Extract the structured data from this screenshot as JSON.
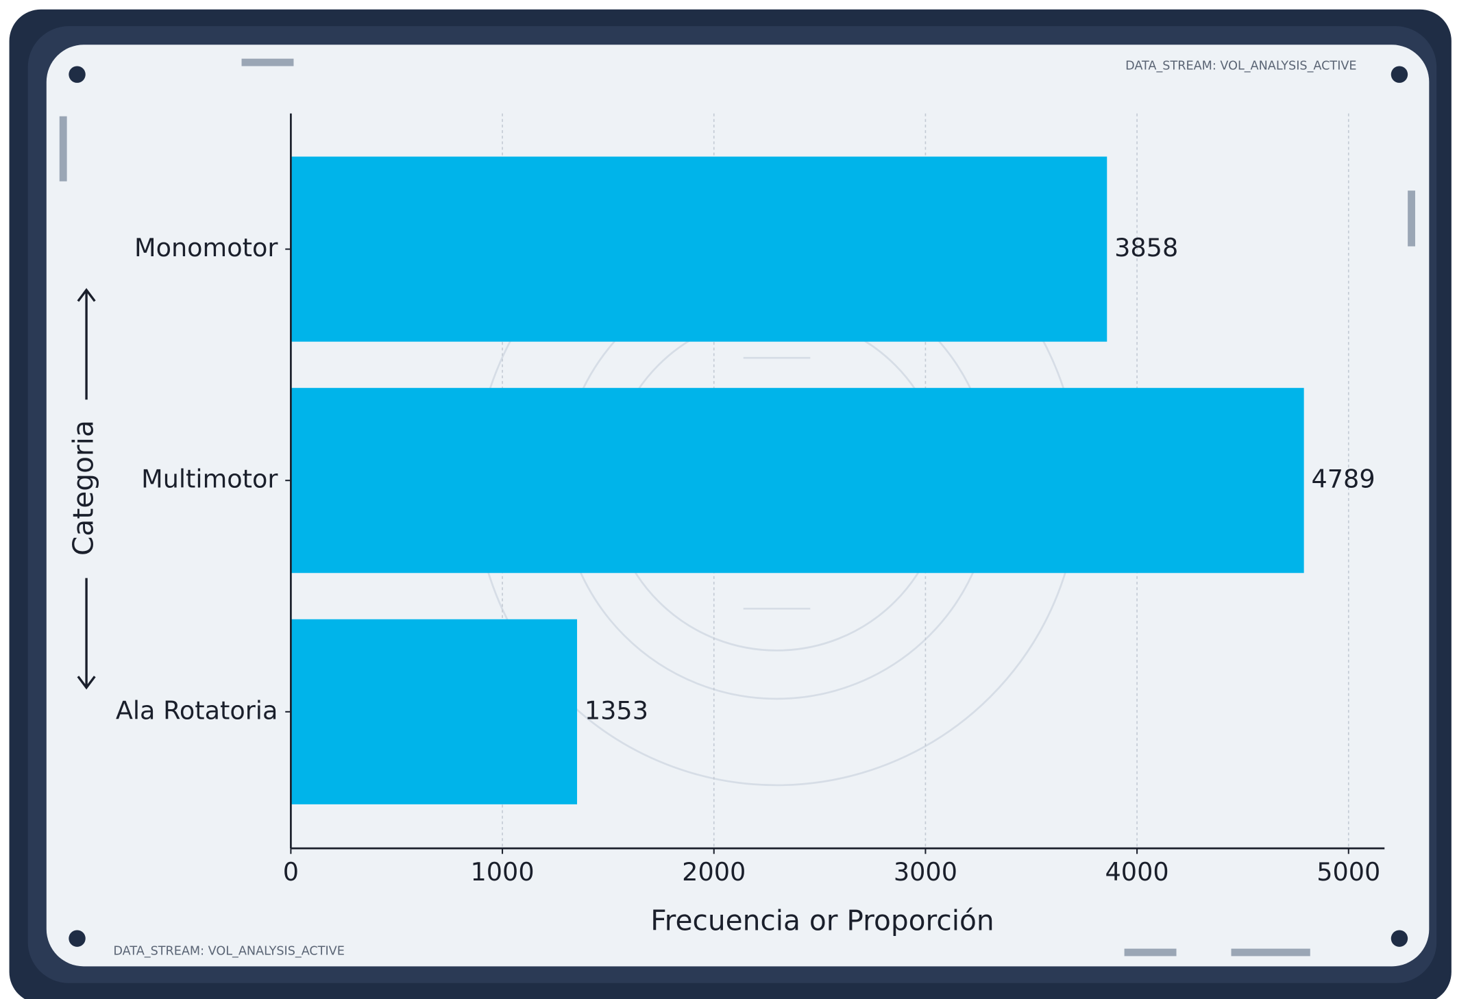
{
  "chart_data": {
    "type": "barh",
    "x_label": "Frecuencia or Proporción",
    "y_label": "Categoria",
    "categories": [
      "Monomotor",
      "Multimotor",
      "Ala Rotatoria"
    ],
    "values": [
      3858,
      4789,
      1353
    ],
    "color": "#00b4ea",
    "xlim": [
      0,
      5170
    ],
    "xticks": [
      0,
      1000,
      2000,
      3000,
      4000,
      5000
    ],
    "grid": true,
    "annotations": [
      "DATA_STREAM: VOL_ANALYSIS_ACTIVE",
      "DATA_STREAM: VOL_ANALYSIS_ACTIVE"
    ]
  }
}
